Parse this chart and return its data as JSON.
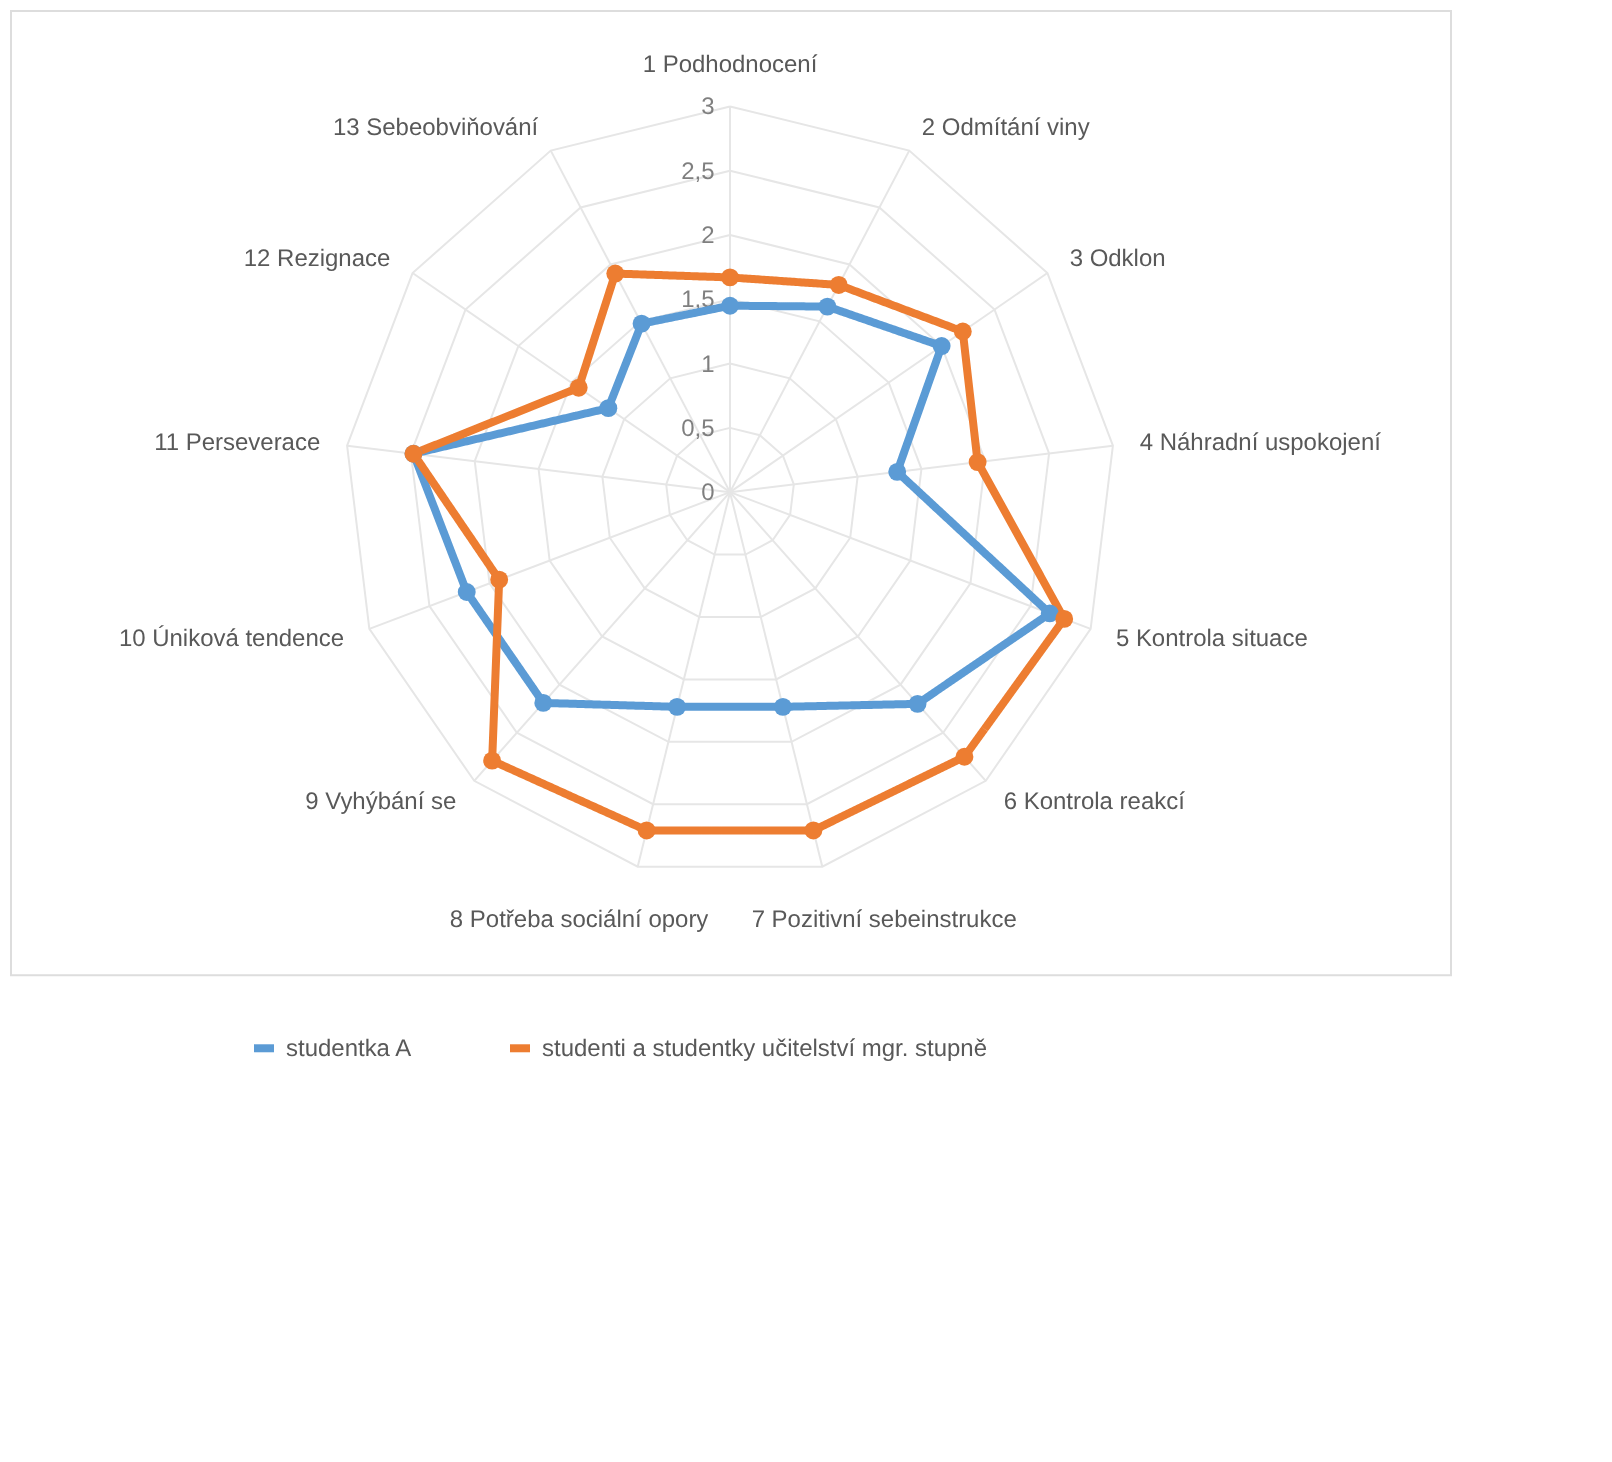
{
  "chart_data": {
    "type": "radar",
    "categories": [
      "1 Podhodnocení",
      "2 Odmítání viny",
      "3 Odklon",
      "4 Náhradní uspokojení",
      "5 Kontrola situace",
      "6 Kontrola reakcí",
      "7 Pozitivní sebeinstrukce",
      "8 Potřeba sociální opory",
      "9 Vyhýbání se",
      "10 Úniková tendence",
      "11 Perseverace",
      "12 Rezignace",
      "13 Sebeobviňování"
    ],
    "series": [
      {
        "name": "studentka A",
        "color": "#5b9bd5",
        "values": [
          1.45,
          1.63,
          2.0,
          1.31,
          2.66,
          2.2,
          1.72,
          1.72,
          2.19,
          2.19,
          2.48,
          1.15,
          1.48
        ]
      },
      {
        "name": "studenti a studentky učitelství mgr. stupně",
        "color": "#ed7d31",
        "values": [
          1.67,
          1.82,
          2.2,
          1.94,
          2.78,
          2.75,
          2.71,
          2.71,
          2.79,
          1.92,
          2.48,
          1.43,
          1.92
        ]
      }
    ],
    "ylim": [
      0,
      3
    ],
    "yticks": [
      0,
      {
        "value": 0.5,
        "label": "0,5"
      },
      1,
      {
        "value": 1.5,
        "label": "1,5"
      },
      2,
      {
        "value": 2.5,
        "label": "2,5"
      },
      3
    ],
    "grid": true,
    "legend": "bottom",
    "marker": "circle",
    "line_style": "solid"
  }
}
